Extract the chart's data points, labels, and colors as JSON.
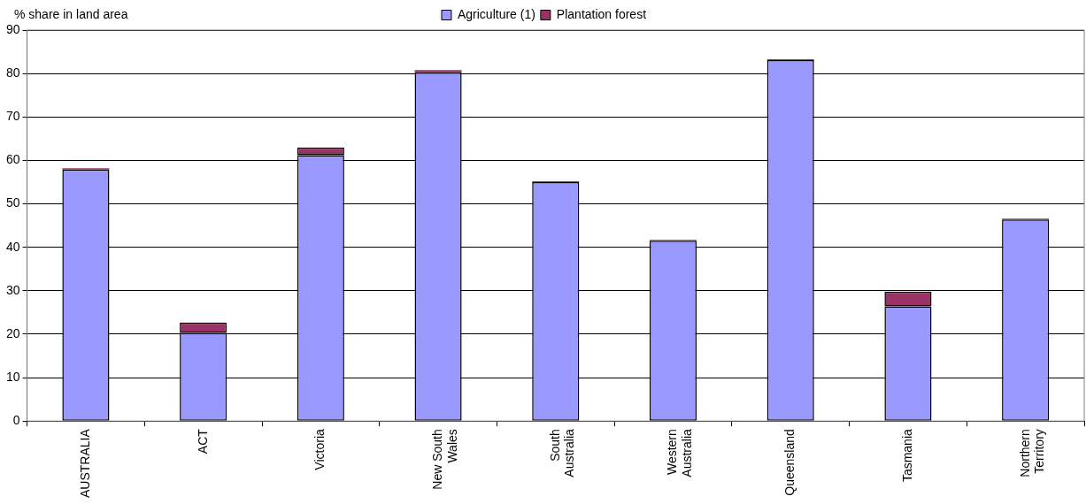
{
  "chart_data": {
    "type": "bar",
    "ylabel": "% share in land area",
    "stacked": true,
    "categories": [
      "AUSTRALIA",
      "ACT",
      "Victoria",
      "New South Wales",
      "South Australia",
      "Western Australia",
      "Queensland",
      "Tasmania",
      "Northern Territory"
    ],
    "series": [
      {
        "name": "Agriculture (1)",
        "color": "#9999ff",
        "values": [
          57.9,
          20.3,
          61.2,
          80.3,
          55.0,
          41.5,
          83.1,
          26.4,
          46.4
        ]
      },
      {
        "name": "Plantation forest",
        "color": "#993366",
        "values": [
          0.3,
          2.4,
          1.8,
          0.5,
          0.2,
          0.2,
          0.2,
          3.4,
          0.2
        ]
      }
    ],
    "ylim": [
      0,
      90
    ],
    "yticks": [
      0,
      10,
      20,
      30,
      40,
      50,
      60,
      70,
      80,
      90
    ],
    "grid": "y",
    "legend": "top"
  }
}
